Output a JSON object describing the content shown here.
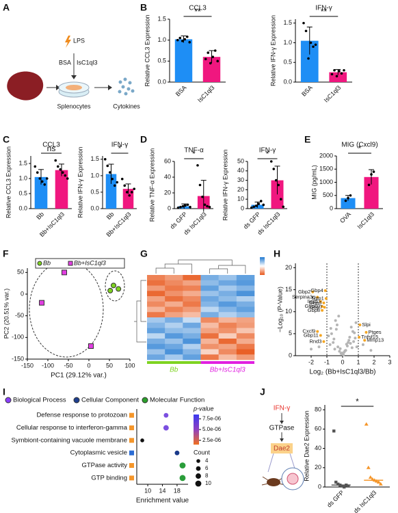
{
  "panel_labels": [
    "A",
    "B",
    "C",
    "D",
    "E",
    "F",
    "G",
    "H",
    "I",
    "J"
  ],
  "diagram_a": {
    "lps": "LPS",
    "bsa": "BSA",
    "treatment": "IsC1ql3",
    "cells": "Splenocytes",
    "output": "Cytokines"
  },
  "diagram_j": {
    "nodes": [
      "IFN-γ",
      "GTPase",
      "Dae2"
    ]
  },
  "chart_data": [
    {
      "type": "bar",
      "title": "CCL3",
      "ylabel": "Relative CCL3 Expression",
      "categories": [
        "BSA",
        "IsC1ql3"
      ],
      "values": [
        1.02,
        0.6
      ],
      "errors": [
        0.08,
        0.15
      ],
      "points": [
        [
          1.0,
          1.05,
          0.98,
          1.02,
          1.08,
          0.95
        ],
        [
          0.55,
          0.7,
          0.45,
          0.6,
          0.75,
          0.5
        ]
      ],
      "colors": [
        "#1e8ef5",
        "#f0177f"
      ],
      "ylim": [
        0,
        1.5
      ],
      "yticks": [
        {
          "value": 0,
          "label": "0.0"
        },
        0.5,
        {
          "value": 1,
          "label": "1.0"
        },
        1.5
      ],
      "significance": "**"
    },
    {
      "type": "bar",
      "title": "IFN-γ",
      "ylabel": "Relative IFN-γ Expression",
      "categories": [
        "BSA",
        "IsC1ql3"
      ],
      "values": [
        1.05,
        0.25
      ],
      "errors": [
        0.35,
        0.07
      ],
      "points": [
        [
          1.5,
          1.3,
          0.6,
          1.0,
          0.9,
          0.95
        ],
        [
          0.2,
          0.3,
          0.15,
          0.28,
          0.22,
          0.3
        ]
      ],
      "colors": [
        "#1e8ef5",
        "#f0177f"
      ],
      "ylim": [
        0,
        1.6
      ],
      "yticks": [
        {
          "value": 0,
          "label": "0.0"
        },
        0.5,
        {
          "value": 1,
          "label": "1.0"
        },
        1.5
      ],
      "significance": "**"
    },
    {
      "type": "bar",
      "title": "CCL3",
      "ylabel": "Relative CCL3 Expression",
      "categories": [
        "Bb",
        "Bb+IsC1ql3"
      ],
      "values": [
        1.05,
        1.28
      ],
      "errors": [
        0.25,
        0.2
      ],
      "points": [
        [
          1.4,
          1.2,
          1.0,
          0.9,
          0.8,
          1.0
        ],
        [
          1.6,
          1.4,
          1.3,
          1.2,
          1.1,
          1.0
        ]
      ],
      "colors": [
        "#1e8ef5",
        "#f0177f"
      ],
      "ylim": [
        0,
        1.75
      ],
      "yticks": [
        {
          "value": 0,
          "label": "0.0"
        },
        0.5,
        {
          "value": 1,
          "label": "1.0"
        },
        1.5
      ],
      "significance": "ns"
    },
    {
      "type": "bar",
      "title": "IFN-γ",
      "ylabel": "Relative IFN-γ Expression",
      "categories": [
        "Bb",
        "Bb+IsC1ql3"
      ],
      "values": [
        1.05,
        0.6
      ],
      "errors": [
        0.3,
        0.15
      ],
      "points": [
        [
          1.5,
          1.3,
          1.1,
          0.9,
          0.7,
          0.8
        ],
        [
          0.9,
          0.7,
          0.5,
          0.4,
          0.5,
          0.6
        ]
      ],
      "colors": [
        "#1e8ef5",
        "#f0177f"
      ],
      "ylim": [
        0,
        1.6
      ],
      "yticks": [
        {
          "value": 0,
          "label": "0.0"
        },
        0.5,
        {
          "value": 1,
          "label": "1.0"
        },
        1.5
      ],
      "significance": "*"
    },
    {
      "type": "bar",
      "title": "TNF-α",
      "ylabel": "Relative TNF-α Expression",
      "categories": [
        "ds GFP",
        "ds IsC1ql3"
      ],
      "values": [
        3,
        16
      ],
      "errors": [
        3,
        20
      ],
      "points": [
        [
          1,
          2,
          3,
          4,
          5,
          2
        ],
        [
          55,
          30,
          15,
          5,
          3,
          2
        ]
      ],
      "colors": [
        "#1e8ef5",
        "#f0177f"
      ],
      "ylim": [
        0,
        60
      ],
      "yticks": [
        0,
        20,
        40,
        60
      ],
      "significance": "*"
    },
    {
      "type": "bar",
      "title": "IFN-γ",
      "ylabel": "Relative IFN-γ Expression",
      "categories": [
        "ds GFP",
        "ds IsC1ql3"
      ],
      "values": [
        4,
        30
      ],
      "errors": [
        3,
        15
      ],
      "points": [
        [
          1,
          2,
          3,
          5,
          8,
          4
        ],
        [
          50,
          42,
          30,
          25,
          10,
          2
        ]
      ],
      "colors": [
        "#1e8ef5",
        "#f0177f"
      ],
      "ylim": [
        0,
        50
      ],
      "yticks": [
        0,
        10,
        20,
        30,
        40,
        50
      ],
      "significance": "*"
    },
    {
      "type": "bar",
      "title": "MIG (Cxcl9)",
      "ylabel": "MIG (pg/mL)",
      "categories": [
        "OVA",
        "IsC1ql3"
      ],
      "values": [
        400,
        1200
      ],
      "errors": [
        100,
        280
      ],
      "points": [
        [
          300,
          400,
          500
        ],
        [
          900,
          1300,
          1400
        ]
      ],
      "colors": [
        "#1e8ef5",
        "#f0177f"
      ],
      "ylim": [
        0,
        2000
      ],
      "yticks": [
        0,
        500,
        1000,
        1500,
        2000
      ],
      "significance": "*"
    },
    {
      "type": "scatter",
      "xlabel": "PC1 (29.12% var.)",
      "ylabel": "PC2 (20.51% var.)",
      "xlim": [
        -150,
        100
      ],
      "xticks": [
        -150,
        -100,
        -50,
        0,
        50,
        100
      ],
      "ylim": [
        -150,
        60
      ],
      "yticks": [
        -150,
        -100,
        -50,
        0,
        50
      ],
      "series": [
        {
          "name": "Bb",
          "color": "#7ed321",
          "marker": "circle",
          "x": [
            60,
            52,
            72
          ],
          "y": [
            20,
            8,
            12
          ]
        },
        {
          "name": "Bb+IsC1ql3",
          "color": "#e03ee0",
          "marker": "square",
          "x": [
            -60,
            -115,
            5
          ],
          "y": [
            50,
            -20,
            -120
          ]
        }
      ]
    },
    {
      "type": "heatmap",
      "groups": [
        "Bb",
        "Bb+IsC1ql3"
      ],
      "group_colors": [
        "#7ed321",
        "#e020e0"
      ],
      "zlim": [
        -2,
        2
      ],
      "colorscale": [
        "#e8581c",
        "#ffffff",
        "#1f78d1"
      ],
      "values": [
        [
          -1.5,
          -1.2,
          -1.8,
          1.2,
          0.9,
          1.4
        ],
        [
          -1.7,
          -1.4,
          -1.1,
          1.0,
          1.3,
          1.5
        ],
        [
          -1.2,
          -1.6,
          -1.5,
          1.4,
          0.8,
          1.1
        ],
        [
          -1.8,
          -1.3,
          -1.0,
          0.9,
          1.2,
          1.6
        ],
        [
          -1.1,
          -1.7,
          -1.4,
          1.3,
          1.0,
          0.7
        ],
        [
          -1.4,
          -1.0,
          -1.6,
          1.1,
          1.5,
          1.2
        ],
        [
          -0.9,
          -1.5,
          -1.2,
          0.6,
          1.1,
          1.4
        ],
        [
          -1.6,
          -1.1,
          -0.8,
          1.2,
          0.7,
          1.0
        ],
        [
          0.8,
          1.2,
          0.5,
          -1.4,
          -0.9,
          -1.1
        ],
        [
          1.1,
          0.7,
          1.3,
          -0.8,
          -1.5,
          -1.2
        ],
        [
          1.4,
          1.0,
          0.9,
          -1.1,
          -1.3,
          -0.7
        ],
        [
          0.6,
          1.5,
          1.2,
          -1.7,
          -0.6,
          -1.4
        ],
        [
          1.2,
          0.9,
          1.6,
          -0.9,
          -1.8,
          -1.0
        ],
        [
          1.5,
          1.3,
          0.7,
          -1.3,
          -1.1,
          -1.6
        ],
        [
          0.9,
          1.6,
          1.1,
          -0.5,
          -1.4,
          -1.9
        ],
        [
          1.3,
          0.8,
          1.4,
          -1.6,
          -0.8,
          -1.2
        ]
      ]
    },
    {
      "type": "volcano",
      "xlabel": "Log₂ (Bb+IsC1ql3/Bb)",
      "ylabel": "−Log₁₀ (P-Value)",
      "xlim": [
        -3,
        3
      ],
      "xticks": [
        -2,
        -1,
        0,
        1,
        2,
        3
      ],
      "ylim": [
        0,
        21
      ],
      "yticks": [
        0,
        5,
        10,
        15,
        20
      ],
      "vlines": [
        -1,
        1
      ],
      "series": [
        {
          "color": "#b5b5b5",
          "x": [
            -0.8,
            -0.6,
            -0.5,
            -0.3,
            -0.2,
            -0.1,
            0,
            0.1,
            0.2,
            0.3,
            0.4,
            0.5,
            0.6,
            0.7,
            0.8,
            0.9,
            -0.9,
            -0.7,
            -0.4,
            0.05,
            -0.15,
            0.25,
            0.45,
            -0.55,
            0.65,
            -0.35,
            0.15,
            -0.05,
            0.35,
            0.55,
            -0.75,
            0.75,
            -1.5,
            -2.0,
            1.3,
            1.8,
            -0.45,
            0.85,
            -0.25,
            0.0
          ],
          "y": [
            2.5,
            3.0,
            1.5,
            2.0,
            1.0,
            0.5,
            0.3,
            0.8,
            1.2,
            2.2,
            3.5,
            2.8,
            1.8,
            3.2,
            4.0,
            2.0,
            4.5,
            5.0,
            6.0,
            0.2,
            1.6,
            2.6,
            4.2,
            3.8,
            5.5,
            7.0,
            1.1,
            0.6,
            3.0,
            6.5,
            6.2,
            5.2,
            2.0,
            1.5,
            2.5,
            1.2,
            8.0,
            7.5,
            9.0,
            0.4
          ]
        },
        {
          "color": "#f5a623",
          "x": [
            -1.9,
            -1.6,
            -1.4,
            -1.3,
            -1.1,
            -1.05,
            -1.2,
            -1.15,
            -1.3,
            -1.6,
            -1.4,
            -1.2,
            1.1,
            1.5,
            1.05,
            1.4
          ],
          "y": [
            14.5,
            13.3,
            12.3,
            11.2,
            14.8,
            13.0,
            12.0,
            11.0,
            10.3,
            5.5,
            4.6,
            3.2,
            7.0,
            5.3,
            4.2,
            3.5
          ],
          "labels": [
            "Gbp2",
            "Serpina3g",
            "Iigp1",
            "Gbp10",
            "Gbp4",
            "Tgtp1",
            "Gbp6",
            "Gbp7",
            "Gbp8",
            "Cxcl9",
            "Gbp11",
            "Rnd3",
            "Slpi",
            "Ptges",
            "Tnfsf15",
            "Mmp13"
          ]
        }
      ]
    },
    {
      "type": "dotplot",
      "xlabel": "Enrichment value",
      "xlim": [
        7,
        21
      ],
      "xticks": [
        10,
        14,
        18
      ],
      "categories": [
        "Defense response to protozoan",
        "Cellular response to interferon-gamma",
        "Symbiont-containing vacuole membrane",
        "Cytoplasmic vesicle",
        "GTPase activity",
        "GTP binding"
      ],
      "values": [
        15,
        15,
        8.5,
        18,
        19.5,
        19.5
      ],
      "sizes": [
        6,
        8,
        4,
        6,
        10,
        10
      ],
      "colors": [
        "#7b4fe0",
        "#7b4fe0",
        "#111111",
        "#1a3a8a",
        "#2a9d3a",
        "#2a9d3a"
      ],
      "square_colors": [
        "#f5962a",
        "#f5962a",
        "#f5962a",
        "#2b6cd4",
        "#f5962a",
        "#f5962a"
      ],
      "legend": [
        {
          "name": "Biological Process",
          "color": "#8a3ffc"
        },
        {
          "name": "Cellular Component",
          "color": "#1f3f8f"
        },
        {
          "name": "Molecular Function",
          "color": "#2ca02c"
        }
      ],
      "colorbar": {
        "title": "p-value",
        "zlim": [
          1.5e-06,
          8.5e-06
        ],
        "colors": [
          "#f07020",
          "#9040c0",
          "#3a3af0"
        ],
        "ticks": [
          {
            "value": 7.5e-06,
            "label": "7.5e-06"
          },
          {
            "value": 5e-06,
            "label": "5.0e-06"
          },
          {
            "value": 2.5e-06,
            "label": "2.5e-06"
          }
        ]
      },
      "size_legend": {
        "title": "Count",
        "values": [
          4,
          6,
          8,
          10
        ]
      }
    },
    {
      "type": "strip",
      "ylabel": "Relative Dae2 Expression",
      "categories": [
        "ds GFP",
        "ds IsC1ql3"
      ],
      "colors": [
        "#555555",
        "#f5962a"
      ],
      "markers": [
        "square",
        "triangle"
      ],
      "points": [
        [
          58,
          5,
          3,
          2,
          1,
          0,
          2,
          1
        ],
        [
          65,
          20,
          10,
          8,
          7,
          6,
          5,
          3
        ]
      ],
      "medians": [
        2,
        7
      ],
      "ylim": [
        0,
        85
      ],
      "yticks": [
        0,
        20,
        40,
        60,
        80
      ],
      "significance": "*"
    }
  ]
}
